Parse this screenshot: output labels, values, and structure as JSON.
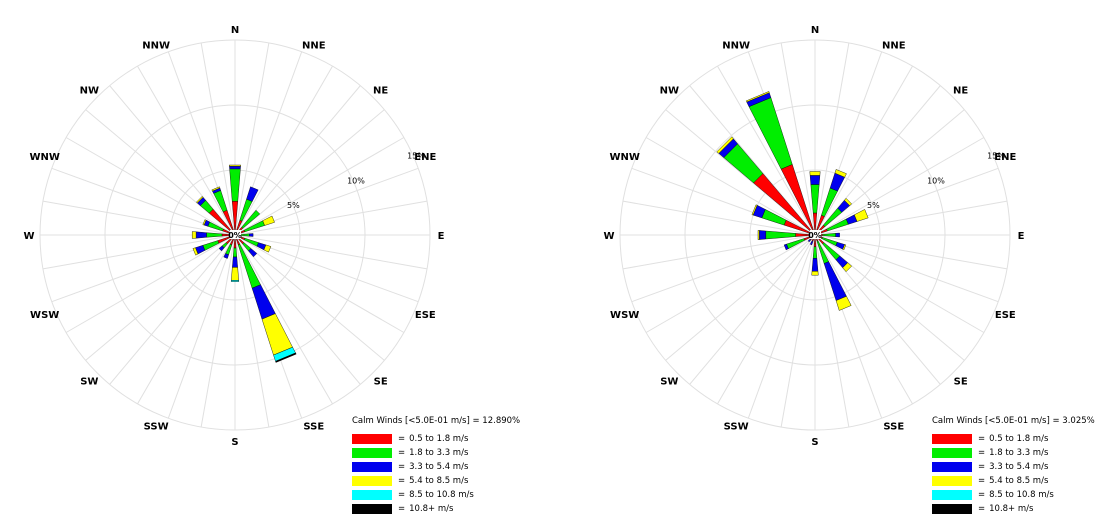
{
  "chart_data": [
    {
      "type": "windrose",
      "directions": [
        "N",
        "NNE",
        "NE",
        "ENE",
        "E",
        "ESE",
        "SE",
        "SSE",
        "S",
        "SSW",
        "SW",
        "WSW",
        "W",
        "WNW",
        "NW",
        "NNW"
      ],
      "ring_labels": [
        "5%",
        "10%",
        "15%"
      ],
      "center_label": "0%",
      "calm_label": "Calm Winds [<5.0E-01 m/s] = 12.890%",
      "bins": [
        "0.5 to 1.8 m/s",
        "1.8 to 3.3 m/s",
        "3.3 to 5.4 m/s",
        "5.4 to 8.5 m/s",
        "8.5 to 10.8 m/s",
        "10.8+ m/s"
      ],
      "colors": [
        "#ff0000",
        "#00ee00",
        "#0000ee",
        "#ffff00",
        "#00ffff",
        "#000000"
      ],
      "values": [
        [
          2.6,
          2.5,
          0.2,
          0.1,
          0.0,
          0.0
        ],
        [
          1.2,
          1.7,
          1.0,
          0.0,
          0.0,
          0.0
        ],
        [
          0.8,
          1.7,
          0.0,
          0.0,
          0.0,
          0.0
        ],
        [
          0.8,
          1.6,
          0.0,
          0.8,
          0.0,
          0.0
        ],
        [
          0.4,
          0.7,
          0.3,
          0.0,
          0.0,
          0.0
        ],
        [
          0.8,
          1.1,
          0.6,
          0.4,
          0.0,
          0.0
        ],
        [
          0.9,
          0.7,
          0.6,
          0.0,
          0.0,
          0.0
        ],
        [
          0.8,
          3.5,
          2.5,
          2.9,
          0.5,
          0.1
        ],
        [
          1.0,
          0.7,
          0.8,
          1.0,
          0.1,
          0.0
        ],
        [
          0.8,
          0.8,
          0.3,
          0.0,
          0.0,
          0.0
        ],
        [
          0.9,
          0.4,
          0.3,
          0.0,
          0.0,
          0.0
        ],
        [
          1.4,
          1.2,
          0.6,
          0.2,
          0.0,
          0.0
        ],
        [
          1.0,
          1.2,
          0.8,
          0.3,
          0.0,
          0.0
        ],
        [
          1.0,
          1.2,
          0.3,
          0.1,
          0.0,
          0.0
        ],
        [
          2.6,
          0.9,
          0.3,
          0.1,
          0.0,
          0.0
        ],
        [
          2.0,
          1.6,
          0.2,
          0.1,
          0.0,
          0.0
        ]
      ]
    },
    {
      "type": "windrose",
      "directions": [
        "N",
        "NNE",
        "NE",
        "ENE",
        "E",
        "ESE",
        "SE",
        "SSE",
        "S",
        "SSW",
        "SW",
        "WSW",
        "W",
        "WNW",
        "NW",
        "NNW"
      ],
      "ring_labels": [
        "5%",
        "10%",
        "15%"
      ],
      "center_label": "0%",
      "calm_label": "Calm Winds [<5.0E-01 m/s] = 3.025%",
      "bins": [
        "0.5 to 1.8 m/s",
        "1.8 to 3.3 m/s",
        "3.3 to 5.4 m/s",
        "5.4 to 8.5 m/s",
        "8.5 to 10.8 m/s",
        "10.8+ m/s"
      ],
      "colors": [
        "#ff0000",
        "#00ee00",
        "#0000ee",
        "#ffff00",
        "#00ffff",
        "#000000"
      ],
      "values": [
        [
          1.7,
          2.2,
          0.7,
          0.3,
          0.0,
          0.0
        ],
        [
          1.6,
          2.2,
          1.2,
          0.3,
          0.0,
          0.0
        ],
        [
          1.0,
          1.7,
          0.8,
          0.2,
          0.0,
          0.0
        ],
        [
          1.0,
          1.7,
          0.7,
          0.9,
          0.0,
          0.0
        ],
        [
          0.6,
          1.0,
          0.3,
          0.0,
          0.0,
          0.0
        ],
        [
          0.6,
          1.2,
          0.6,
          0.1,
          0.0,
          0.0
        ],
        [
          0.9,
          1.6,
          0.8,
          0.4,
          0.0,
          0.0
        ],
        [
          0.5,
          1.8,
          3.0,
          0.8,
          0.0,
          0.0
        ],
        [
          0.9,
          0.9,
          1.0,
          0.3,
          0.0,
          0.0
        ],
        [
          0.5,
          0.0,
          0.3,
          0.0,
          0.0,
          0.0
        ],
        [
          0.5,
          0.0,
          0.2,
          0.0,
          0.0,
          0.0
        ],
        [
          0.9,
          1.4,
          0.2,
          0.0,
          0.0,
          0.0
        ],
        [
          1.5,
          2.3,
          0.5,
          0.1,
          0.0,
          0.0
        ],
        [
          2.5,
          1.8,
          0.7,
          0.1,
          0.0,
          0.0
        ],
        [
          6.2,
          3.0,
          0.5,
          0.2,
          0.0,
          0.0
        ],
        [
          5.7,
          5.4,
          0.4,
          0.1,
          0.0,
          0.0
        ]
      ]
    }
  ]
}
